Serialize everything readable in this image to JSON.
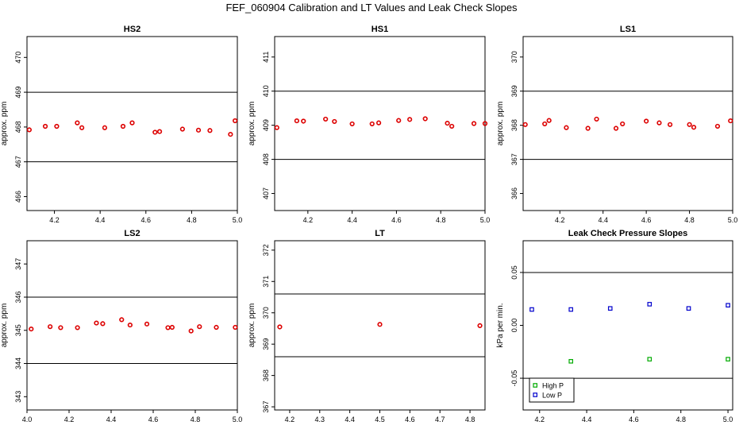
{
  "title": "FEF_060904  Calibration and LT Values and Leak Check Slopes",
  "colors": {
    "cal_points": "#dd0000",
    "high_p": "#00aa00",
    "low_p": "#0000cc",
    "axis": "#000000"
  },
  "chart_data": [
    {
      "type": "scatter",
      "title": "HS2",
      "ylabel": "approx. ppm",
      "xlim": [
        4.08,
        5.0
      ],
      "ylim": [
        465.6,
        470.6
      ],
      "xticks": [
        4.2,
        4.4,
        4.6,
        4.8,
        5.0
      ],
      "xtick_labels": [
        "4.2",
        "4.4",
        "4.6",
        "4.8",
        "5.0"
      ],
      "yticks": [
        466,
        467,
        468,
        469,
        470
      ],
      "ytick_labels": [
        "466",
        "467",
        "468",
        "469",
        "470"
      ],
      "hlines": [
        469,
        467
      ],
      "series": [
        {
          "x": [
            4.09,
            4.16,
            4.21,
            4.3,
            4.32,
            4.42,
            4.5,
            4.54,
            4.64,
            4.66,
            4.76,
            4.83,
            4.88,
            4.97,
            4.99
          ],
          "y": [
            467.92,
            468.02,
            468.02,
            468.12,
            467.98,
            467.98,
            468.02,
            468.12,
            467.85,
            467.87,
            467.94,
            467.91,
            467.9,
            467.79,
            468.18
          ]
        }
      ]
    },
    {
      "type": "scatter",
      "title": "HS1",
      "ylabel": "approx. ppm",
      "xlim": [
        4.05,
        5.0
      ],
      "ylim": [
        406.5,
        411.6
      ],
      "xticks": [
        4.2,
        4.4,
        4.6,
        4.8,
        5.0
      ],
      "xtick_labels": [
        "4.2",
        "4.4",
        "4.6",
        "4.8",
        "5.0"
      ],
      "yticks": [
        407,
        408,
        409,
        410,
        411
      ],
      "ytick_labels": [
        "407",
        "408",
        "409",
        "410",
        "411"
      ],
      "hlines": [
        410,
        408
      ],
      "series": [
        {
          "x": [
            4.06,
            4.15,
            4.18,
            4.28,
            4.32,
            4.4,
            4.49,
            4.52,
            4.61,
            4.66,
            4.73,
            4.83,
            4.85,
            4.95,
            5.0
          ],
          "y": [
            408.93,
            409.13,
            409.12,
            409.18,
            409.11,
            409.04,
            409.04,
            409.07,
            409.14,
            409.17,
            409.19,
            409.06,
            408.97,
            409.05,
            409.05
          ]
        }
      ]
    },
    {
      "type": "scatter",
      "title": "LS1",
      "ylabel": "approx. ppm",
      "xlim": [
        4.03,
        5.0
      ],
      "ylim": [
        365.5,
        370.6
      ],
      "xticks": [
        4.2,
        4.4,
        4.6,
        4.8,
        5.0
      ],
      "xtick_labels": [
        "4.2",
        "4.4",
        "4.6",
        "4.8",
        "5.0"
      ],
      "yticks": [
        366,
        367,
        368,
        369,
        370
      ],
      "ytick_labels": [
        "366",
        "367",
        "368",
        "369",
        "370"
      ],
      "hlines": [
        369,
        367
      ],
      "series": [
        {
          "x": [
            4.04,
            4.13,
            4.15,
            4.23,
            4.33,
            4.37,
            4.46,
            4.49,
            4.6,
            4.66,
            4.71,
            4.8,
            4.82,
            4.93,
            4.99
          ],
          "y": [
            368.02,
            368.04,
            368.14,
            367.93,
            367.91,
            368.18,
            367.91,
            368.04,
            368.12,
            368.07,
            368.02,
            368.02,
            367.94,
            367.97,
            368.13
          ]
        }
      ]
    },
    {
      "type": "scatter",
      "title": "LS2",
      "ylabel": "approx. ppm",
      "xlim": [
        4.0,
        5.0
      ],
      "ylim": [
        342.6,
        347.7
      ],
      "xticks": [
        4.0,
        4.2,
        4.4,
        4.6,
        4.8,
        5.0
      ],
      "xtick_labels": [
        "4.0",
        "4.2",
        "4.4",
        "4.6",
        "4.8",
        "5.0"
      ],
      "yticks": [
        343,
        344,
        345,
        346,
        347
      ],
      "ytick_labels": [
        "343",
        "344",
        "345",
        "346",
        "347"
      ],
      "hlines": [
        346,
        344
      ],
      "series": [
        {
          "x": [
            4.02,
            4.11,
            4.16,
            4.24,
            4.33,
            4.36,
            4.45,
            4.49,
            4.57,
            4.67,
            4.69,
            4.78,
            4.82,
            4.9,
            4.99
          ],
          "y": [
            345.04,
            345.11,
            345.08,
            345.08,
            345.22,
            345.2,
            345.32,
            345.16,
            345.19,
            345.08,
            345.09,
            344.98,
            345.11,
            345.09,
            345.09
          ]
        }
      ]
    },
    {
      "type": "scatter",
      "title": "LT",
      "ylabel": "approx. ppm",
      "xlim": [
        4.15,
        4.85
      ],
      "ylim": [
        366.9,
        372.3
      ],
      "xticks": [
        4.2,
        4.3,
        4.4,
        4.5,
        4.6,
        4.7,
        4.8
      ],
      "xtick_labels": [
        "4.2",
        "4.3",
        "4.4",
        "4.5",
        "4.6",
        "4.7",
        "4.8"
      ],
      "yticks": [
        367,
        368,
        369,
        370,
        371,
        372
      ],
      "ytick_labels": [
        "367",
        "368",
        "369",
        "370",
        "371",
        "372"
      ],
      "hlines": [
        370.6,
        368.6
      ],
      "series": [
        {
          "x": [
            4.167,
            4.5,
            4.833
          ],
          "y": [
            369.55,
            369.63,
            369.59
          ]
        }
      ]
    },
    {
      "type": "scatter",
      "title": "Leak Check Pressure Slopes",
      "ylabel": "kPa per min.",
      "xlim": [
        4.13,
        5.02
      ],
      "ylim": [
        -0.08,
        0.08
      ],
      "xticks": [
        4.2,
        4.4,
        4.6,
        4.8,
        5.0
      ],
      "xtick_labels": [
        "4.2",
        "4.4",
        "4.6",
        "4.8",
        "5.0"
      ],
      "yticks": [
        -0.05,
        0.0,
        0.05
      ],
      "ytick_labels": [
        "-0.05",
        "0.00",
        "0.05"
      ],
      "hlines": [
        0.05,
        -0.05
      ],
      "legend": {
        "placement": "bottom-left",
        "entries": [
          "High P",
          "Low P"
        ]
      },
      "series": [
        {
          "name": "High P",
          "x": [
            4.333,
            4.667,
            5.0
          ],
          "y": [
            -0.034,
            -0.032,
            -0.032
          ]
        },
        {
          "name": "Low P",
          "x": [
            4.167,
            4.333,
            4.5,
            4.667,
            4.833,
            5.0
          ],
          "y": [
            0.015,
            0.015,
            0.016,
            0.02,
            0.016,
            0.019
          ]
        }
      ]
    }
  ]
}
